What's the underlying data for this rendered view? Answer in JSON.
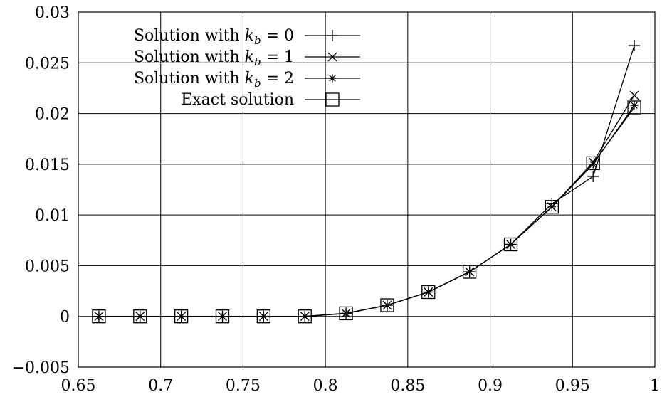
{
  "chart_data": {
    "type": "line",
    "title": "",
    "xlabel": "",
    "ylabel": "",
    "xlim": [
      0.65,
      1.0
    ],
    "ylim": [
      -0.005,
      0.03
    ],
    "x_ticks": [
      "0.65",
      "0.7",
      "0.75",
      "0.8",
      "0.85",
      "0.9",
      "0.95",
      "1"
    ],
    "y_ticks": [
      "−0.005",
      "0",
      "0.005",
      "0.01",
      "0.015",
      "0.02",
      "0.025",
      "0.03"
    ],
    "x_tick_values": [
      0.65,
      0.7,
      0.75,
      0.8,
      0.85,
      0.9,
      0.95,
      1.0
    ],
    "y_tick_values": [
      -0.005,
      0,
      0.005,
      0.01,
      0.015,
      0.02,
      0.025,
      0.03
    ],
    "grid": true,
    "legend_position": "top-left",
    "x": [
      0.6625,
      0.6875,
      0.7125,
      0.7375,
      0.7625,
      0.7875,
      0.8125,
      0.8375,
      0.8625,
      0.8875,
      0.9125,
      0.9375,
      0.9625,
      0.9875
    ],
    "series": [
      {
        "name": "Solution with kb = 0",
        "label_prefix": "Solution with ",
        "label_math": "k",
        "label_sub": "b",
        "label_suffix": " = 0",
        "marker": "plus",
        "color": "#000000",
        "values": [
          0,
          0,
          0,
          0,
          0,
          0,
          0.0003,
          0.0011,
          0.0024,
          0.0044,
          0.0071,
          0.0111,
          0.0138,
          0.0267
        ]
      },
      {
        "name": "Solution with kb = 1",
        "label_prefix": "Solution with ",
        "label_math": "k",
        "label_sub": "b",
        "label_suffix": " = 1",
        "marker": "cross",
        "color": "#000000",
        "values": [
          0,
          0,
          0,
          0,
          0,
          0,
          0.0003,
          0.0011,
          0.0024,
          0.0044,
          0.0071,
          0.0108,
          0.0152,
          0.0218
        ]
      },
      {
        "name": "Solution with kb = 2",
        "label_prefix": "Solution with ",
        "label_math": "k",
        "label_sub": "b",
        "label_suffix": " = 2",
        "marker": "star",
        "color": "#000000",
        "values": [
          0,
          0,
          0,
          0,
          0,
          0,
          0.0003,
          0.0011,
          0.0024,
          0.0044,
          0.0071,
          0.0108,
          0.015,
          0.0208
        ]
      },
      {
        "name": "Exact solution",
        "label_prefix": "Exact solution",
        "label_math": "",
        "label_sub": "",
        "label_suffix": "",
        "marker": "square",
        "color": "#000000",
        "values": [
          0,
          0,
          0,
          0,
          0,
          0,
          0.0003,
          0.0011,
          0.0024,
          0.0044,
          0.0071,
          0.0108,
          0.0151,
          0.0206
        ]
      }
    ]
  }
}
